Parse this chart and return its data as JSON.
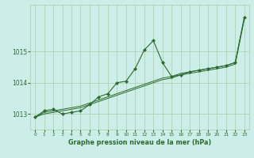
{
  "xlabel": "Graphe pression niveau de la mer (hPa)",
  "background_color": "#cceee8",
  "line_color": "#2d6a2d",
  "grid_color": "#aaccaa",
  "ylim": [
    1012.5,
    1016.5
  ],
  "yticks": [
    1013,
    1014,
    1015
  ],
  "xlim": [
    -0.5,
    23.5
  ],
  "xticks": [
    0,
    1,
    2,
    3,
    4,
    5,
    6,
    7,
    8,
    9,
    10,
    11,
    12,
    13,
    14,
    15,
    16,
    17,
    18,
    19,
    20,
    21,
    22,
    23
  ],
  "series_main": [
    1012.9,
    1013.1,
    1013.15,
    1013.0,
    1013.05,
    1013.1,
    1013.3,
    1013.55,
    1013.65,
    1014.0,
    1014.05,
    1014.45,
    1015.05,
    1015.35,
    1014.65,
    1014.2,
    1014.25,
    1014.35,
    1014.4,
    1014.45,
    1014.5,
    1014.55,
    1014.65,
    1016.1
  ],
  "series_smooth1": [
    1012.9,
    1013.05,
    1013.1,
    1013.15,
    1013.2,
    1013.25,
    1013.35,
    1013.45,
    1013.55,
    1013.65,
    1013.75,
    1013.85,
    1013.95,
    1014.05,
    1014.15,
    1014.2,
    1014.3,
    1014.35,
    1014.4,
    1014.45,
    1014.5,
    1014.55,
    1014.65,
    1016.1
  ],
  "series_smooth2": [
    1012.9,
    1013.0,
    1013.05,
    1013.1,
    1013.15,
    1013.2,
    1013.3,
    1013.4,
    1013.5,
    1013.6,
    1013.7,
    1013.8,
    1013.9,
    1014.0,
    1014.1,
    1014.15,
    1014.25,
    1014.3,
    1014.35,
    1014.4,
    1014.45,
    1014.5,
    1014.6,
    1016.05
  ]
}
